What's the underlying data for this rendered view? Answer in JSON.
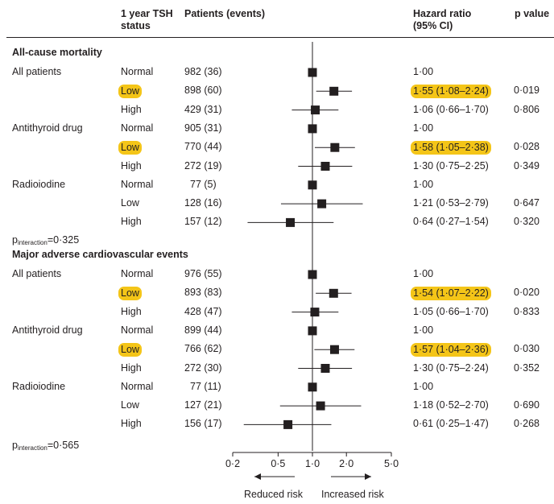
{
  "headers": {
    "tsh_status": "1 year TSH status",
    "patients": "Patients (events)",
    "hr": "Hazard ratio (95% CI)",
    "p": "p value"
  },
  "chart_data": {
    "type": "forest",
    "x_scale": "log",
    "xlim": [
      0.2,
      5.0
    ],
    "ticks": [
      0.2,
      0.5,
      1.0,
      2.0,
      5.0
    ],
    "tick_labels": [
      "0·2",
      "0·5",
      "1·0",
      "2·0",
      "5·0"
    ],
    "reference_line": 1.0,
    "direction_labels": {
      "left": "Reduced risk",
      "right": "Increased risk"
    },
    "sections": [
      {
        "title": "All-cause mortality",
        "interaction_label": "p",
        "interaction_sub": "interaction",
        "interaction_value": "=0·325",
        "groups": [
          {
            "name": "All patients",
            "rows": [
              {
                "status": "Normal",
                "patients": "982 (36)",
                "hr": 1.0,
                "lo": null,
                "hi": null,
                "hr_text": "1·00",
                "p": "",
                "highlight": false
              },
              {
                "status": "Low",
                "patients": "898 (60)",
                "hr": 1.55,
                "lo": 1.08,
                "hi": 2.24,
                "hr_text": "1·55 (1·08–2·24)",
                "p": "0·019",
                "highlight": true
              },
              {
                "status": "High",
                "patients": "429 (31)",
                "hr": 1.06,
                "lo": 0.66,
                "hi": 1.7,
                "hr_text": "1·06 (0·66–1·70)",
                "p": "0·806",
                "highlight": false
              }
            ]
          },
          {
            "name": "Antithyroid drug",
            "rows": [
              {
                "status": "Normal",
                "patients": "905 (31)",
                "hr": 1.0,
                "lo": null,
                "hi": null,
                "hr_text": "1·00",
                "p": "",
                "highlight": false
              },
              {
                "status": "Low",
                "patients": "770 (44)",
                "hr": 1.58,
                "lo": 1.05,
                "hi": 2.38,
                "hr_text": "1·58 (1·05–2·38)",
                "p": "0·028",
                "highlight": true
              },
              {
                "status": "High",
                "patients": "272 (19)",
                "hr": 1.3,
                "lo": 0.75,
                "hi": 2.25,
                "hr_text": "1·30 (0·75–2·25)",
                "p": "0·349",
                "highlight": false
              }
            ]
          },
          {
            "name": "Radioiodine",
            "rows": [
              {
                "status": "Normal",
                "patients": "77 (5)",
                "hr": 1.0,
                "lo": null,
                "hi": null,
                "hr_text": "1·00",
                "p": "",
                "highlight": false
              },
              {
                "status": "Low",
                "patients": "128 (16)",
                "hr": 1.21,
                "lo": 0.53,
                "hi": 2.79,
                "hr_text": "1·21 (0·53–2·79)",
                "p": "0·647",
                "highlight": false
              },
              {
                "status": "High",
                "patients": "157 (12)",
                "hr": 0.64,
                "lo": 0.27,
                "hi": 1.54,
                "hr_text": "0·64 (0·27–1·54)",
                "p": "0·320",
                "highlight": false
              }
            ]
          }
        ]
      },
      {
        "title": "Major adverse cardiovascular events",
        "interaction_label": "p",
        "interaction_sub": "interaction",
        "interaction_value": "=0·565",
        "groups": [
          {
            "name": "All patients",
            "rows": [
              {
                "status": "Normal",
                "patients": "976 (55)",
                "hr": 1.0,
                "lo": null,
                "hi": null,
                "hr_text": "1·00",
                "p": "",
                "highlight": false
              },
              {
                "status": "Low",
                "patients": "893 (83)",
                "hr": 1.54,
                "lo": 1.07,
                "hi": 2.22,
                "hr_text": "1·54 (1·07–2·22)",
                "p": "0·020",
                "highlight": true
              },
              {
                "status": "High",
                "patients": "428 (47)",
                "hr": 1.05,
                "lo": 0.66,
                "hi": 1.7,
                "hr_text": "1·05 (0·66–1·70)",
                "p": "0·833",
                "highlight": false
              }
            ]
          },
          {
            "name": "Antithyroid drug",
            "rows": [
              {
                "status": "Normal",
                "patients": "899 (44)",
                "hr": 1.0,
                "lo": null,
                "hi": null,
                "hr_text": "1·00",
                "p": "",
                "highlight": false
              },
              {
                "status": "Low",
                "patients": "766 (62)",
                "hr": 1.57,
                "lo": 1.04,
                "hi": 2.36,
                "hr_text": "1·57 (1·04–2·36)",
                "p": "0·030",
                "highlight": true
              },
              {
                "status": "High",
                "patients": "272 (30)",
                "hr": 1.3,
                "lo": 0.75,
                "hi": 2.24,
                "hr_text": "1·30 (0·75–2·24)",
                "p": "0·352",
                "highlight": false
              }
            ]
          },
          {
            "name": "Radioiodine",
            "rows": [
              {
                "status": "Normal",
                "patients": "77 (11)",
                "hr": 1.0,
                "lo": null,
                "hi": null,
                "hr_text": "1·00",
                "p": "",
                "highlight": false
              },
              {
                "status": "Low",
                "patients": "127 (21)",
                "hr": 1.18,
                "lo": 0.52,
                "hi": 2.7,
                "hr_text": "1·18 (0·52–2·70)",
                "p": "0·690",
                "highlight": false
              },
              {
                "status": "High",
                "patients": "156 (17)",
                "hr": 0.61,
                "lo": 0.25,
                "hi": 1.47,
                "hr_text": "0·61 (0·25–1·47)",
                "p": "0·268",
                "highlight": false
              }
            ]
          }
        ]
      }
    ]
  },
  "colors": {
    "highlight": "#f4c518",
    "ink": "#231f20",
    "rule": "#231f20"
  }
}
